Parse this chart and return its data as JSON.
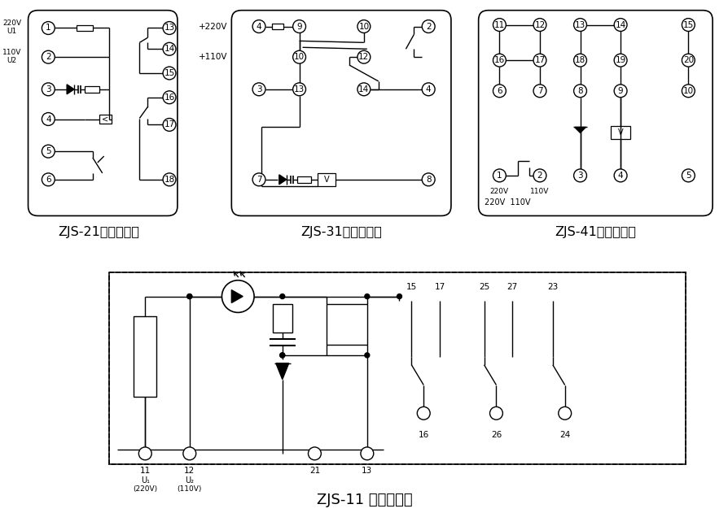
{
  "bg_color": "#ffffff",
  "lc": "#000000",
  "label_zjs21": "ZJS-21内部接线图",
  "label_zjs31": "ZJS-31内部接线图",
  "label_zjs41": "ZJS-41内部接线图",
  "label_zjs11": "ZJS-11 背后接线图",
  "font_label": 11.5,
  "font_title": 13,
  "cr": 8
}
